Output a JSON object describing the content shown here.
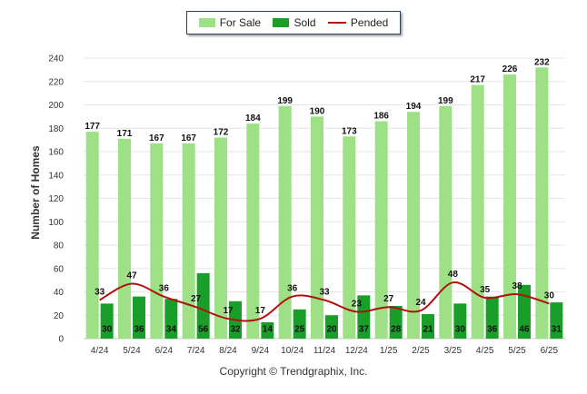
{
  "legend": {
    "items": [
      {
        "name": "For Sale",
        "color": "#9ee085",
        "kind": "bar"
      },
      {
        "name": "Sold",
        "color": "#1a9e2a",
        "kind": "bar"
      },
      {
        "name": "Pended",
        "color": "#b40f0f",
        "kind": "line"
      }
    ]
  },
  "copyright": "Copyright © Trendgraphix, Inc.",
  "chart_data": {
    "type": "bar",
    "ylabel": "Number of Homes",
    "ylim": [
      0,
      240
    ],
    "yticks": [
      0,
      20,
      40,
      60,
      80,
      100,
      120,
      140,
      160,
      180,
      200,
      220,
      240
    ],
    "grid": true,
    "legend_position": "top-center",
    "categories": [
      "4/24",
      "5/24",
      "6/24",
      "7/24",
      "8/24",
      "9/24",
      "10/24",
      "11/24",
      "12/24",
      "1/25",
      "2/25",
      "3/25",
      "4/25",
      "5/25",
      "6/25"
    ],
    "series": [
      {
        "name": "For Sale",
        "type": "bar",
        "color": "#9ee085",
        "values": [
          177,
          171,
          167,
          167,
          172,
          184,
          199,
          190,
          173,
          186,
          194,
          199,
          217,
          226,
          232
        ]
      },
      {
        "name": "Sold",
        "type": "bar",
        "color": "#1a9e2a",
        "values": [
          30,
          36,
          34,
          56,
          32,
          14,
          25,
          20,
          37,
          28,
          21,
          30,
          36,
          46,
          31
        ]
      },
      {
        "name": "Pended",
        "type": "line",
        "color": "#b40f0f",
        "values": [
          33,
          47,
          36,
          27,
          17,
          17,
          36,
          33,
          23,
          27,
          24,
          48,
          35,
          38,
          30
        ]
      }
    ]
  }
}
